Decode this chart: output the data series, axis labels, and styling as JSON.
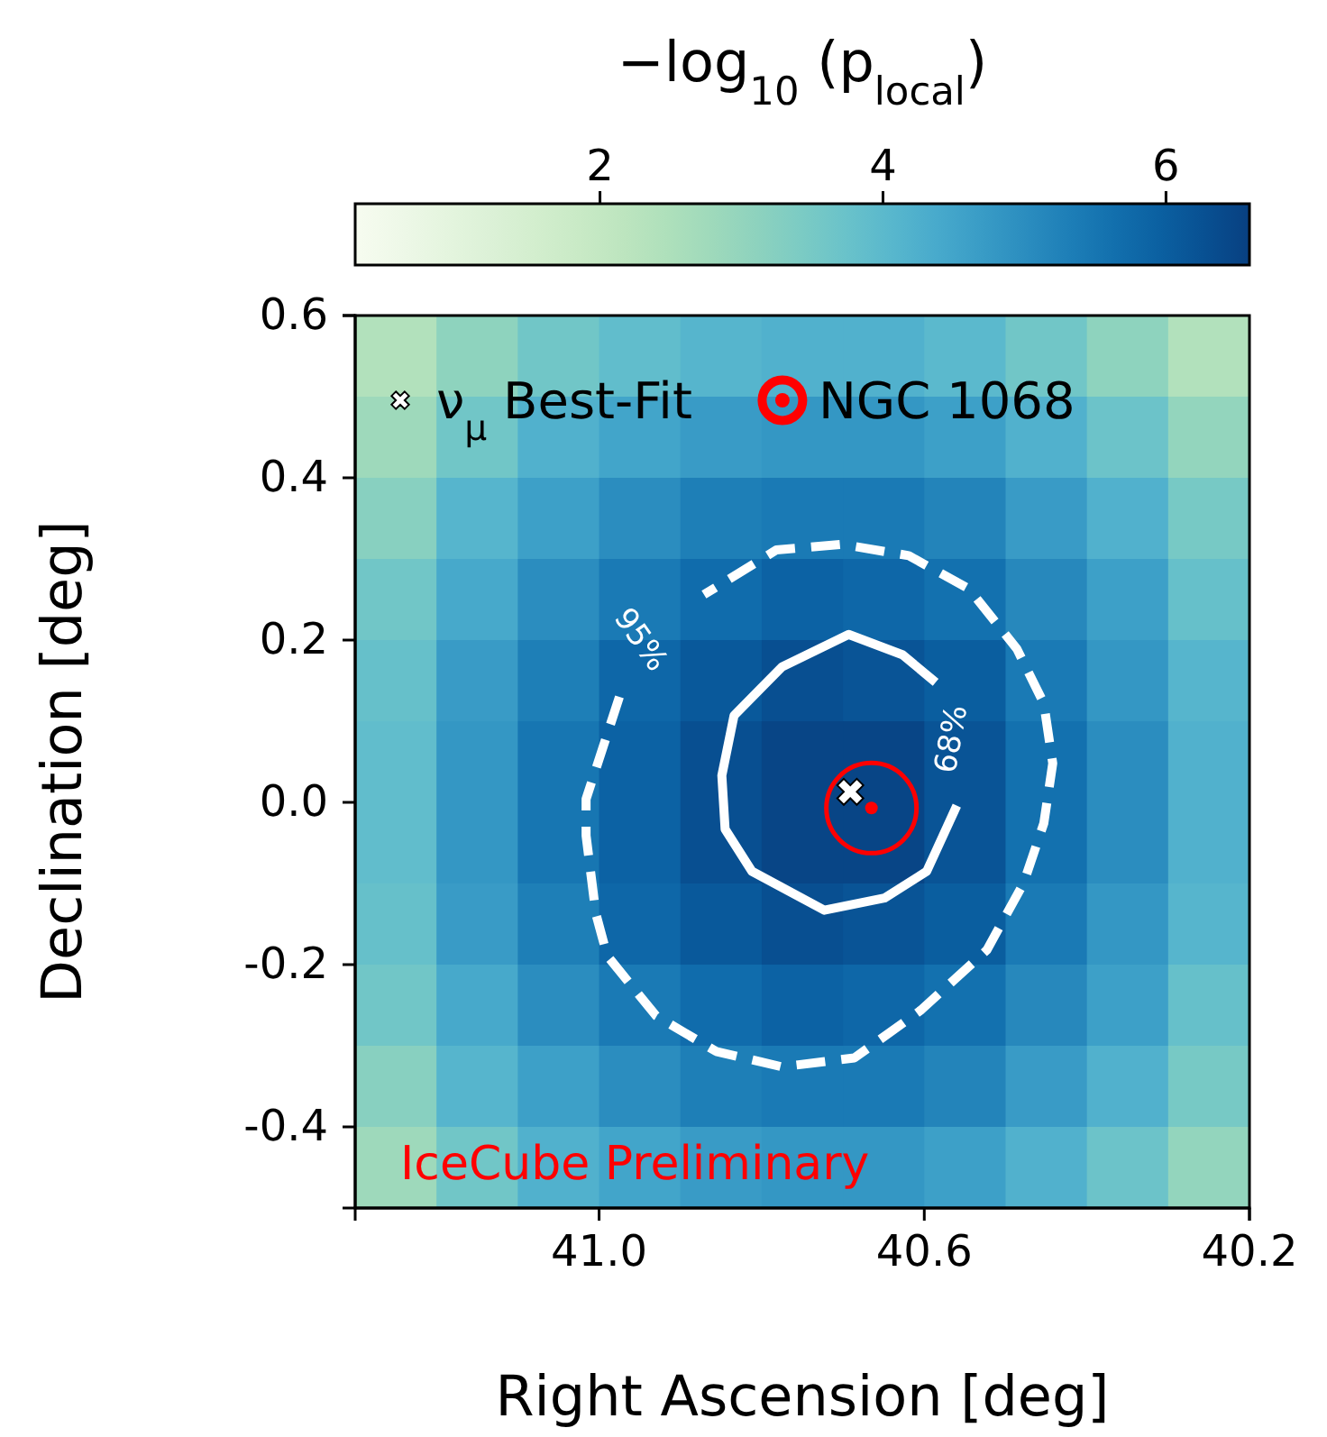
{
  "chart_data": {
    "type": "heatmap",
    "clabel": "−log$_{10}$ (p$_{local}$)",
    "xlabel": "Right Ascension [deg]",
    "ylabel": "Declination [deg]",
    "xlim": [
      41.3,
      40.2
    ],
    "xticks": [
      {
        "value": 41,
        "label": "41.0"
      },
      40.6,
      40.2
    ],
    "ylim": [
      -0.5,
      0.6
    ],
    "yticks": [
      0.6,
      0.4,
      0.2,
      {
        "value": 0,
        "label": "0.0"
      },
      -0.2,
      -0.4
    ],
    "clim": [
      0.27,
      6.59
    ],
    "cticks": [
      2,
      4,
      6
    ],
    "cells": [
      [
        2.4,
        3.1,
        3.6,
        3.9,
        4.1,
        4.2,
        4.2,
        4.0,
        3.6,
        3.1,
        2.4
      ],
      [
        2.8,
        3.6,
        4.2,
        4.5,
        4.7,
        4.8,
        4.8,
        4.6,
        4.2,
        3.7,
        3.0
      ],
      [
        3.2,
        4.1,
        4.6,
        5.0,
        5.3,
        5.4,
        5.4,
        5.2,
        4.7,
        4.2,
        3.5
      ],
      [
        3.6,
        4.4,
        5.0,
        5.4,
        5.7,
        5.9,
        5.8,
        5.6,
        5.1,
        4.6,
        3.8
      ],
      [
        3.8,
        4.7,
        5.3,
        5.8,
        6.1,
        6.3,
        6.2,
        6.0,
        5.4,
        4.8,
        4.1
      ],
      [
        3.9,
        4.8,
        5.5,
        5.9,
        6.3,
        6.5,
        6.5,
        6.2,
        5.6,
        5.0,
        4.2
      ],
      [
        3.9,
        4.8,
        5.5,
        5.9,
        6.3,
        6.5,
        6.5,
        6.2,
        5.6,
        5.0,
        4.2
      ],
      [
        3.8,
        4.7,
        5.3,
        5.8,
        6.1,
        6.3,
        6.2,
        6.0,
        5.4,
        4.8,
        4.1
      ],
      [
        3.6,
        4.4,
        5.0,
        5.4,
        5.7,
        5.9,
        5.8,
        5.6,
        5.1,
        4.6,
        3.8
      ],
      [
        3.2,
        4.1,
        4.6,
        5.0,
        5.3,
        5.4,
        5.4,
        5.2,
        4.7,
        4.2,
        3.5
      ],
      [
        2.8,
        3.6,
        4.2,
        4.5,
        4.7,
        4.8,
        4.8,
        4.6,
        4.2,
        3.7,
        3.0
      ]
    ],
    "series": [
      {
        "type": "line",
        "color": "#ffffff",
        "line_style": "solid",
        "x": [
          40.586,
          40.627,
          40.693,
          40.775,
          40.834,
          40.849,
          40.845,
          40.812,
          40.723,
          40.649,
          40.597,
          40.56
        ],
        "values": [
          0.148,
          0.182,
          0.207,
          0.167,
          0.107,
          0.033,
          -0.033,
          -0.085,
          -0.133,
          -0.118,
          -0.085,
          -0.004
        ]
      },
      {
        "type": "line",
        "color": "#ffffff",
        "line_style": "dashed",
        "x": [
          40.975,
          41.016,
          41.016,
          41.004,
          40.99,
          40.93,
          40.856,
          40.775,
          40.686,
          40.604,
          40.523,
          40.478,
          40.453,
          40.442,
          40.453,
          40.486,
          40.545,
          40.619,
          40.701,
          40.782,
          40.871
        ],
        "values": [
          0.13,
          0.004,
          -0.041,
          -0.137,
          -0.189,
          -0.263,
          -0.307,
          -0.326,
          -0.315,
          -0.256,
          -0.182,
          -0.1,
          -0.026,
          0.048,
          0.122,
          0.189,
          0.263,
          0.304,
          0.318,
          0.311,
          0.256
        ]
      },
      {
        "type": "scatter",
        "name": "ν$_{μ}$ Best-Fit",
        "color": "#ffffff",
        "marker": "cross",
        "x": [
          40.691
        ],
        "values": [
          0.013
        ]
      },
      {
        "type": "scatter",
        "name": "NGC 1068",
        "color": "#ff0000",
        "marker": "circle",
        "x": [
          40.665
        ],
        "values": [
          -0.007
        ]
      }
    ],
    "annotations": [
      "95%",
      "68%",
      "IceCube Preliminary"
    ],
    "legend": "top"
  }
}
